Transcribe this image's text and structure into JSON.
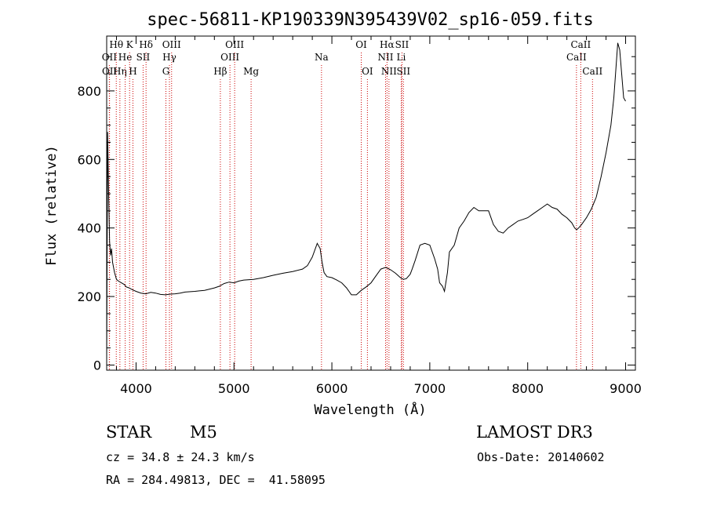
{
  "chart_data": {
    "type": "line",
    "title": "spec-56811-KP190339N395439V02_sp16-059.fits",
    "xlabel": "Wavelength (Å)",
    "ylabel": "Flux (relative)",
    "xlim": [
      3700,
      9100
    ],
    "ylim": [
      -15,
      960
    ],
    "xticks": [
      4000,
      5000,
      6000,
      7000,
      8000,
      9000
    ],
    "yticks": [
      0,
      200,
      400,
      600,
      800
    ],
    "grid": false,
    "line_color": "#000000",
    "marker_color": "#cc0000",
    "series": [
      {
        "x": [
          3700,
          3710,
          3720,
          3730,
          3740,
          3750,
          3760,
          3780,
          3800,
          3820,
          3850,
          3880,
          3900,
          3930,
          3960,
          4000,
          4050,
          4100,
          4150,
          4200,
          4250,
          4300,
          4350,
          4400,
          4450,
          4500,
          4600,
          4700,
          4800,
          4850,
          4900,
          4950,
          5000,
          5050,
          5100,
          5200,
          5300,
          5400,
          5500,
          5600,
          5700,
          5750,
          5800,
          5850,
          5880,
          5900,
          5920,
          5950,
          6000,
          6050,
          6100,
          6150,
          6200,
          6250,
          6300,
          6350,
          6400,
          6450,
          6500,
          6550,
          6600,
          6650,
          6700,
          6730,
          6760,
          6800,
          6820,
          6850,
          6900,
          6950,
          7000,
          7050,
          7080,
          7100,
          7130,
          7150,
          7180,
          7200,
          7250,
          7300,
          7350,
          7400,
          7450,
          7500,
          7550,
          7600,
          7650,
          7700,
          7750,
          7800,
          7850,
          7900,
          7950,
          8000,
          8050,
          8100,
          8150,
          8200,
          8250,
          8300,
          8350,
          8400,
          8450,
          8480,
          8500,
          8520,
          8550,
          8600,
          8650,
          8700,
          8750,
          8800,
          8850,
          8880,
          8900,
          8920,
          8940,
          8960,
          8980,
          9000
        ],
        "y": [
          10,
          680,
          500,
          360,
          320,
          340,
          300,
          270,
          250,
          245,
          240,
          235,
          228,
          225,
          220,
          215,
          210,
          208,
          212,
          210,
          206,
          205,
          207,
          208,
          210,
          213,
          215,
          218,
          225,
          230,
          238,
          242,
          240,
          245,
          248,
          250,
          255,
          262,
          268,
          273,
          280,
          290,
          315,
          355,
          340,
          300,
          270,
          258,
          255,
          248,
          240,
          225,
          205,
          205,
          218,
          228,
          240,
          260,
          280,
          285,
          278,
          268,
          255,
          250,
          252,
          265,
          280,
          305,
          350,
          355,
          350,
          310,
          280,
          240,
          230,
          215,
          270,
          330,
          350,
          400,
          420,
          445,
          460,
          450,
          450,
          450,
          410,
          390,
          385,
          400,
          410,
          420,
          425,
          430,
          440,
          450,
          460,
          470,
          460,
          455,
          440,
          430,
          415,
          400,
          395,
          400,
          410,
          430,
          455,
          490,
          550,
          620,
          700,
          780,
          860,
          940,
          920,
          850,
          780,
          770
        ]
      }
    ],
    "line_markers": [
      {
        "label": "OII",
        "wavelength": 3727,
        "row": 2
      },
      {
        "label": "OII",
        "wavelength": 3729,
        "row": 3
      },
      {
        "label": "Hθ",
        "wavelength": 3798,
        "row": 1
      },
      {
        "label": "Hη",
        "wavelength": 3835,
        "row": 3
      },
      {
        "label": "He",
        "wavelength": 3889,
        "row": 2
      },
      {
        "label": "K",
        "wavelength": 3934,
        "row": 1
      },
      {
        "label": "H",
        "wavelength": 3968,
        "row": 3
      },
      {
        "label": "SII",
        "wavelength": 4072,
        "row": 2
      },
      {
        "label": "Hδ",
        "wavelength": 4102,
        "row": 1
      },
      {
        "label": "G",
        "wavelength": 4305,
        "row": 3
      },
      {
        "label": "Hγ",
        "wavelength": 4341,
        "row": 2
      },
      {
        "label": "OIII",
        "wavelength": 4363,
        "row": 1
      },
      {
        "label": "Hβ",
        "wavelength": 4861,
        "row": 3
      },
      {
        "label": "OIII",
        "wavelength": 4959,
        "row": 2
      },
      {
        "label": "OIII",
        "wavelength": 5007,
        "row": 1
      },
      {
        "label": "Mg",
        "wavelength": 5175,
        "row": 3
      },
      {
        "label": "Na",
        "wavelength": 5894,
        "row": 2
      },
      {
        "label": "OI",
        "wavelength": 6300,
        "row": 1
      },
      {
        "label": "OI",
        "wavelength": 6363,
        "row": 3
      },
      {
        "label": "NII",
        "wavelength": 6548,
        "row": 2
      },
      {
        "label": "Hα",
        "wavelength": 6563,
        "row": 1
      },
      {
        "label": "NII",
        "wavelength": 6583,
        "row": 3
      },
      {
        "label": "Li",
        "wavelength": 6708,
        "row": 2
      },
      {
        "label": "SII",
        "wavelength": 6716,
        "row": 1
      },
      {
        "label": "SII",
        "wavelength": 6731,
        "row": 3
      },
      {
        "label": "CaII",
        "wavelength": 8498,
        "row": 2
      },
      {
        "label": "CaII",
        "wavelength": 8542,
        "row": 1
      },
      {
        "label": "CaII",
        "wavelength": 8662,
        "row": 3
      }
    ]
  },
  "info": {
    "object_class": "STAR",
    "subclass": "M5",
    "survey": "LAMOST DR3",
    "cz": "cz = 34.8 ± 24.3 km/s",
    "obs_date": "Obs-Date: 20140602",
    "coords": "RA = 284.49813, DEC =  41.58095"
  }
}
